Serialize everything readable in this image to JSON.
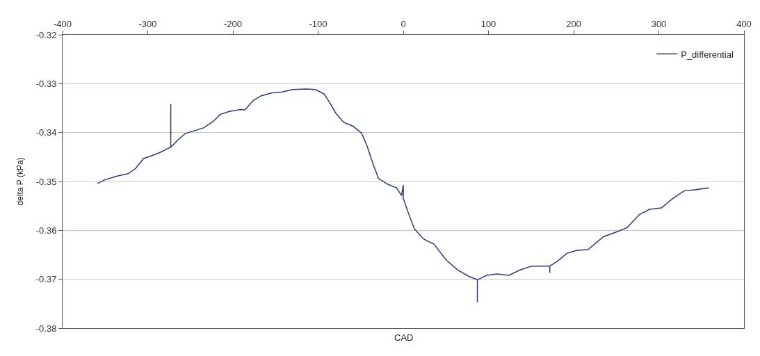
{
  "chart_data": {
    "type": "line",
    "xlabel": "CAD",
    "ylabel": "delta P (kPa)",
    "xlim": [
      -400,
      400
    ],
    "xticks": [
      -400,
      -300,
      -200,
      -100,
      0,
      100,
      200,
      300,
      400
    ],
    "ylim": [
      -0.38,
      -0.32
    ],
    "yticks": [
      -0.38,
      -0.37,
      -0.36,
      -0.35,
      -0.34,
      -0.33,
      -0.32
    ],
    "grid": "y",
    "legend": "top right",
    "marker": "none",
    "line_style": "solid",
    "x": [
      -359,
      -351,
      -336,
      -323,
      -314,
      -305,
      -295,
      -286,
      -277,
      -273,
      -273,
      -273,
      -264,
      -256,
      -245,
      -234,
      -223,
      -215,
      -205,
      -191,
      -186,
      -176,
      -167,
      -155,
      -142,
      -130,
      -114,
      -103,
      -93,
      -86,
      -79,
      -70,
      -59,
      -49,
      -43,
      -35,
      -29,
      -19,
      -8,
      -2,
      0,
      0,
      1,
      5,
      13,
      24,
      36,
      50,
      64,
      77,
      87,
      87,
      87,
      98,
      110,
      124,
      137,
      151,
      172,
      172,
      172,
      181,
      192,
      203,
      217,
      235,
      252,
      263,
      277,
      289,
      303,
      317,
      330,
      342,
      359
    ],
    "series": [
      {
        "name": "P_differential",
        "color": "#2b3a80",
        "values": [
          -0.3504,
          -0.3497,
          -0.3489,
          -0.3484,
          -0.3473,
          -0.3453,
          -0.3447,
          -0.3441,
          -0.3433,
          -0.343,
          -0.3342,
          -0.343,
          -0.3414,
          -0.3402,
          -0.3396,
          -0.339,
          -0.3377,
          -0.3363,
          -0.3357,
          -0.3353,
          -0.3354,
          -0.3334,
          -0.3325,
          -0.3319,
          -0.3317,
          -0.3312,
          -0.3311,
          -0.3312,
          -0.3321,
          -0.334,
          -0.3361,
          -0.3379,
          -0.3387,
          -0.3401,
          -0.3425,
          -0.3467,
          -0.3494,
          -0.3505,
          -0.3513,
          -0.3529,
          -0.3507,
          -0.3535,
          -0.3539,
          -0.356,
          -0.3597,
          -0.3618,
          -0.3628,
          -0.366,
          -0.3681,
          -0.3694,
          -0.3701,
          -0.3747,
          -0.3701,
          -0.3692,
          -0.3689,
          -0.3692,
          -0.3681,
          -0.3673,
          -0.3673,
          -0.3687,
          -0.3673,
          -0.3663,
          -0.3647,
          -0.3641,
          -0.3639,
          -0.3613,
          -0.3602,
          -0.3594,
          -0.3568,
          -0.3557,
          -0.3554,
          -0.3534,
          -0.3519,
          -0.3517,
          -0.3513
        ]
      }
    ]
  }
}
